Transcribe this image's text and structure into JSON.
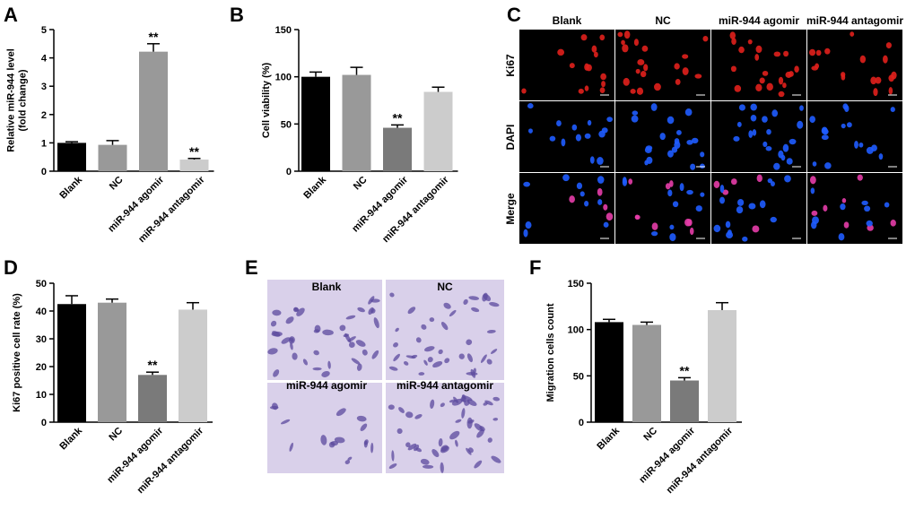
{
  "figure": {
    "panels": {
      "A": {
        "letter": "A"
      },
      "B": {
        "letter": "B"
      },
      "C": {
        "letter": "C"
      },
      "D": {
        "letter": "D"
      },
      "E": {
        "letter": "E"
      },
      "F": {
        "letter": "F"
      }
    },
    "if_images": {
      "columns": [
        "Blank",
        "NC",
        "miR-944 agomir",
        "miR-944 antagomir"
      ],
      "rows": [
        "Ki67",
        "DAPI",
        "Merge"
      ],
      "colors": {
        "ki67": "#e0201c",
        "dapi": "#1f5cff",
        "merge": "#e53da8"
      }
    },
    "transwell_images": {
      "labels": [
        "Blank",
        "NC",
        "miR-944 agomir",
        "miR-944 antagomir"
      ],
      "colors": {
        "background": "#d9d0ea",
        "cell": "#5b4a9e"
      }
    },
    "bar_colors": [
      "#000000",
      "#999999",
      "#7a7a7a",
      "#cccccc"
    ]
  },
  "chart_data": [
    {
      "id": "A",
      "type": "bar",
      "categories": [
        "Blank",
        "NC",
        "miR-944 agomir",
        "miR-944 antagomir"
      ],
      "values": [
        1.0,
        0.93,
        4.22,
        0.41
      ],
      "errors": [
        0.04,
        0.15,
        0.28,
        0.04
      ],
      "significance": [
        "",
        "",
        "**",
        "**"
      ],
      "ylabel_lines": [
        "Relative miR-944 level",
        "(fold change)"
      ],
      "yticks": [
        "0",
        "1",
        "2",
        "3",
        "4",
        "5"
      ],
      "ylim": [
        0,
        5
      ],
      "colors": [
        "#000000",
        "#999999",
        "#999999",
        "#cccccc"
      ]
    },
    {
      "id": "B",
      "type": "bar",
      "categories": [
        "Blank",
        "NC",
        "miR-944 agomir",
        "miR-944 antagomir"
      ],
      "values": [
        100,
        102,
        46,
        84
      ],
      "errors": [
        5,
        8,
        3,
        5
      ],
      "significance": [
        "",
        "",
        "**",
        ""
      ],
      "ylabel_lines": [
        "Cell viability (%)"
      ],
      "yticks": [
        "0",
        "50",
        "100",
        "150"
      ],
      "ylim": [
        0,
        150
      ],
      "colors": [
        "#000000",
        "#999999",
        "#7a7a7a",
        "#cccccc"
      ]
    },
    {
      "id": "D",
      "type": "bar",
      "categories": [
        "Blank",
        "NC",
        "miR-944 agomir",
        "miR-944 antagomir"
      ],
      "values": [
        42.5,
        43.0,
        17.0,
        40.5
      ],
      "errors": [
        3.0,
        1.3,
        1.0,
        2.5
      ],
      "significance": [
        "",
        "",
        "**",
        ""
      ],
      "ylabel_lines": [
        "Ki67 positive cell rate (%)"
      ],
      "yticks": [
        "0",
        "10",
        "20",
        "30",
        "40",
        "50"
      ],
      "ylim": [
        0,
        50
      ],
      "colors": [
        "#000000",
        "#999999",
        "#7a7a7a",
        "#cccccc"
      ]
    },
    {
      "id": "F",
      "type": "bar",
      "categories": [
        "Blank",
        "NC",
        "miR-944 agomir",
        "miR-944 antagomir"
      ],
      "values": [
        108,
        105,
        45,
        121
      ],
      "errors": [
        3,
        3,
        3,
        8
      ],
      "significance": [
        "",
        "",
        "**",
        ""
      ],
      "ylabel_lines": [
        "Migration cells count"
      ],
      "yticks": [
        "0",
        "50",
        "100",
        "150"
      ],
      "ylim": [
        0,
        150
      ],
      "colors": [
        "#000000",
        "#999999",
        "#7a7a7a",
        "#cccccc"
      ]
    }
  ]
}
